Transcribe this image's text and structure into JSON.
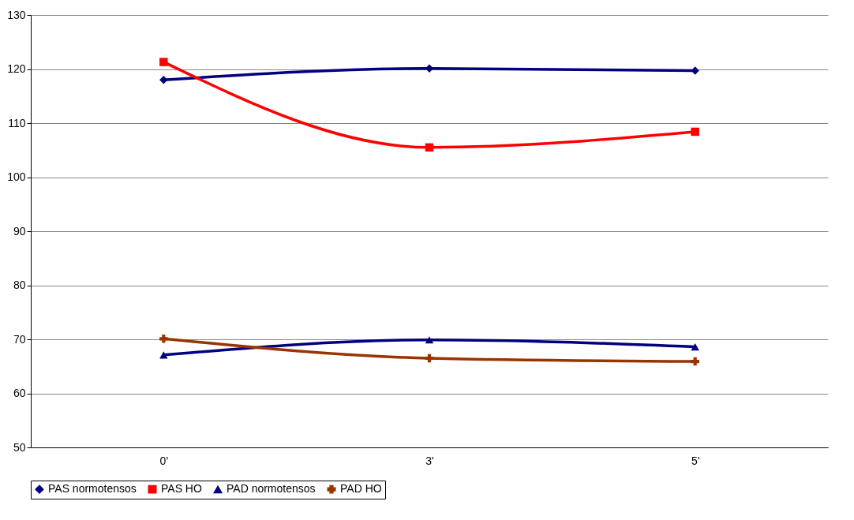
{
  "chart_data": {
    "type": "line",
    "categories": [
      "0'",
      "3'",
      "5'"
    ],
    "series": [
      {
        "name": "PAS normotensos",
        "color": "#000080",
        "marker": "diamond",
        "values": [
          118.0,
          120.1,
          119.7
        ]
      },
      {
        "name": "PAS HO",
        "color": "#ff0000",
        "marker": "square",
        "values": [
          121.3,
          105.5,
          108.4
        ]
      },
      {
        "name": "PAD normotensos",
        "color": "#000080",
        "marker": "triangle",
        "values": [
          67.1,
          69.9,
          68.6
        ]
      },
      {
        "name": "PAD HO",
        "color": "#993300",
        "marker": "cross",
        "values": [
          70.1,
          66.5,
          65.9
        ]
      }
    ],
    "ylim": [
      50,
      130
    ],
    "yticks": [
      50,
      60,
      70,
      80,
      90,
      100,
      110,
      120,
      130
    ],
    "grid": "y",
    "legend": "bottom"
  }
}
